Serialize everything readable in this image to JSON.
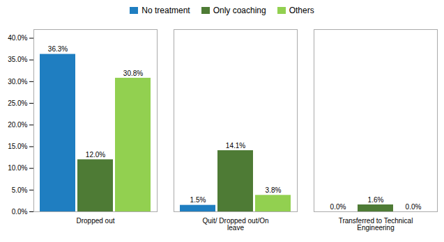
{
  "chart_data": {
    "type": "bar",
    "categories": [
      "Dropped out",
      "Quit/ Dropped out/On\nleave",
      "Transferred to Technical\nEngineering"
    ],
    "series": [
      {
        "name": "No treatment",
        "color": "#1F7EC1",
        "values": [
          36.3,
          1.5,
          0.0
        ],
        "value_labels": [
          "36.3%",
          "1.5%",
          "0.0%"
        ]
      },
      {
        "name": "Only coaching",
        "color": "#4E7B35",
        "values": [
          12.0,
          14.1,
          1.6
        ],
        "value_labels": [
          "12.0%",
          "14.1%",
          "1.6%"
        ]
      },
      {
        "name": "Others",
        "color": "#92D050",
        "values": [
          30.8,
          3.8,
          0.0
        ],
        "value_labels": [
          "30.8%",
          "3.8%",
          "0.0%"
        ]
      }
    ],
    "ylim": [
      0,
      42
    ],
    "yticks": [
      {
        "value": 0,
        "label": "0.0%"
      },
      {
        "value": 5,
        "label": "5.0%"
      },
      {
        "value": 10,
        "label": "10.0%"
      },
      {
        "value": 15,
        "label": "15.0%"
      },
      {
        "value": 20,
        "label": "20.0%"
      },
      {
        "value": 25,
        "label": "25.0%"
      },
      {
        "value": 30,
        "label": "30.0%"
      },
      {
        "value": 35,
        "label": "35.0%"
      },
      {
        "value": 40,
        "label": "40.0%"
      }
    ],
    "grid": false,
    "legend": "top",
    "data_labels": true
  }
}
